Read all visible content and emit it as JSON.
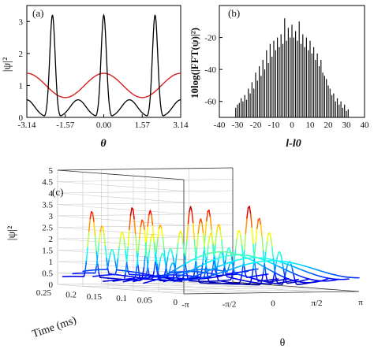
{
  "panels": {
    "a": "(a)",
    "b": "(b)",
    "c": "(c)"
  },
  "chart_data": [
    {
      "type": "line",
      "panel": "(a)",
      "xlabel": "θ",
      "ylabel": "|ψ|²",
      "xlim": [
        -3.14,
        3.14
      ],
      "ylim": [
        0,
        3.5
      ],
      "x_ticks": [
        "-3.14",
        "-1.57",
        "0.00",
        "1.57",
        "3.14"
      ],
      "y_ticks": [
        "0",
        "1",
        "2",
        "3"
      ],
      "series": [
        {
          "color": "#000000",
          "function": "peaks",
          "peak_theta": [
            -2.094,
            0.0,
            2.094
          ],
          "peak_value": 3.2,
          "valley_value": 0.55,
          "min_value": 0.05
        },
        {
          "color": "#d62020",
          "function": "cosine",
          "max_value": 1.38,
          "min_value": 0.62,
          "period_fraction": 0.5
        }
      ]
    },
    {
      "type": "bar",
      "panel": "(b)",
      "xlabel": "l-l0",
      "ylabel": "10log(|FFT(ψ)|²)",
      "xlim": [
        -40,
        40
      ],
      "ylim": [
        -70,
        0
      ],
      "x_ticks": [
        "-40",
        "-30",
        "-20",
        "-10",
        "0",
        "10",
        "20",
        "30",
        "40"
      ],
      "y_ticks": [
        "-20",
        "-40",
        "-60"
      ],
      "l_values": [
        -31,
        -30,
        -29,
        -28,
        -27,
        -26,
        -25,
        -24,
        -23,
        -22,
        -21,
        -20,
        -19,
        -18,
        -17,
        -16,
        -15,
        -14,
        -13,
        -12,
        -11,
        -10,
        -9,
        -8,
        -7,
        -6,
        -5,
        -4,
        -3,
        -2,
        -1,
        0,
        1,
        2,
        3,
        4,
        5,
        6,
        7,
        8,
        9,
        10,
        11,
        12,
        13,
        14,
        15,
        16,
        17,
        18,
        19,
        20,
        21,
        22,
        23,
        24,
        25,
        26,
        27,
        28,
        29,
        30,
        31
      ],
      "values": [
        -64,
        -62,
        -61,
        -58,
        -60,
        -56,
        -59,
        -52,
        -55,
        -48,
        -52,
        -42,
        -47,
        -38,
        -44,
        -34,
        -40,
        -28,
        -36,
        -24,
        -32,
        -22,
        -28,
        -20,
        -26,
        -18,
        -24,
        -8,
        -22,
        -14,
        -20,
        -12,
        -20,
        -16,
        -22,
        -10,
        -24,
        -18,
        -26,
        -20,
        -28,
        -22,
        -30,
        -26,
        -34,
        -30,
        -38,
        -34,
        -42,
        -44,
        -46,
        -50,
        -52,
        -56,
        -55,
        -60,
        -58,
        -62,
        -60,
        -64,
        -62,
        -66,
        -65
      ]
    },
    {
      "type": "line",
      "subtype": "3d-waterfall",
      "panel": "(c)",
      "xlabel": "θ",
      "ylabel": "Time (ms)",
      "zlabel": "|ψ|²",
      "x_ticks": [
        "-π",
        "-π/2",
        "0",
        "π/2",
        "π"
      ],
      "y_ticks": [
        "0",
        "0.05",
        "0.1",
        "0.15",
        "0.2",
        "0.25"
      ],
      "z_ticks": [
        "0",
        "0.5",
        "1",
        "1.5",
        "2",
        "2.5",
        "3",
        "3.5",
        "4",
        "4.5",
        "5"
      ],
      "zlim": [
        0,
        5
      ],
      "colormap": "jet",
      "times_ms": [
        0.0,
        0.02,
        0.04,
        0.06,
        0.08,
        0.1,
        0.12,
        0.14,
        0.16,
        0.18,
        0.2,
        0.22,
        0.24
      ],
      "profiles": [
        {
          "t": 0.0,
          "peaks": [],
          "base": 1.0,
          "mod": 0.4
        },
        {
          "t": 0.02,
          "peaks": [],
          "base": 1.0,
          "mod": 0.5
        },
        {
          "t": 0.04,
          "peaks": [],
          "base": 1.0,
          "mod": 0.6
        },
        {
          "t": 0.06,
          "peaks": [],
          "base": 1.0,
          "mod": 0.7
        },
        {
          "t": 0.08,
          "peaks": [
            1.2,
            1.2,
            1.2
          ],
          "base": 0.9,
          "mod": 0.6
        },
        {
          "t": 0.1,
          "peaks": [
            1.6,
            1.6,
            1.6
          ],
          "base": 0.8,
          "mod": 0.5
        },
        {
          "t": 0.12,
          "peaks": [
            2.4,
            2.4,
            2.4
          ],
          "base": 0.6,
          "mod": 0.4
        },
        {
          "t": 0.14,
          "peaks": [
            3.0,
            3.0,
            3.0
          ],
          "base": 0.5,
          "mod": 0.3
        },
        {
          "t": 0.16,
          "peaks": [
            3.5,
            3.5,
            3.5
          ],
          "base": 0.4,
          "mod": 0.2
        },
        {
          "t": 0.18,
          "peaks": [
            2.4,
            2.4,
            2.4
          ],
          "base": 0.6,
          "mod": 0.3
        },
        {
          "t": 0.2,
          "peaks": [
            1.6,
            1.6,
            1.6
          ],
          "base": 0.8,
          "mod": 0.4
        },
        {
          "t": 0.22,
          "peaks": [
            2.6,
            2.6,
            2.6
          ],
          "base": 0.6,
          "mod": 0.3
        },
        {
          "t": 0.24,
          "peaks": [
            3.2,
            3.2,
            3.2
          ],
          "base": 0.4,
          "mod": 0.2
        }
      ]
    }
  ]
}
